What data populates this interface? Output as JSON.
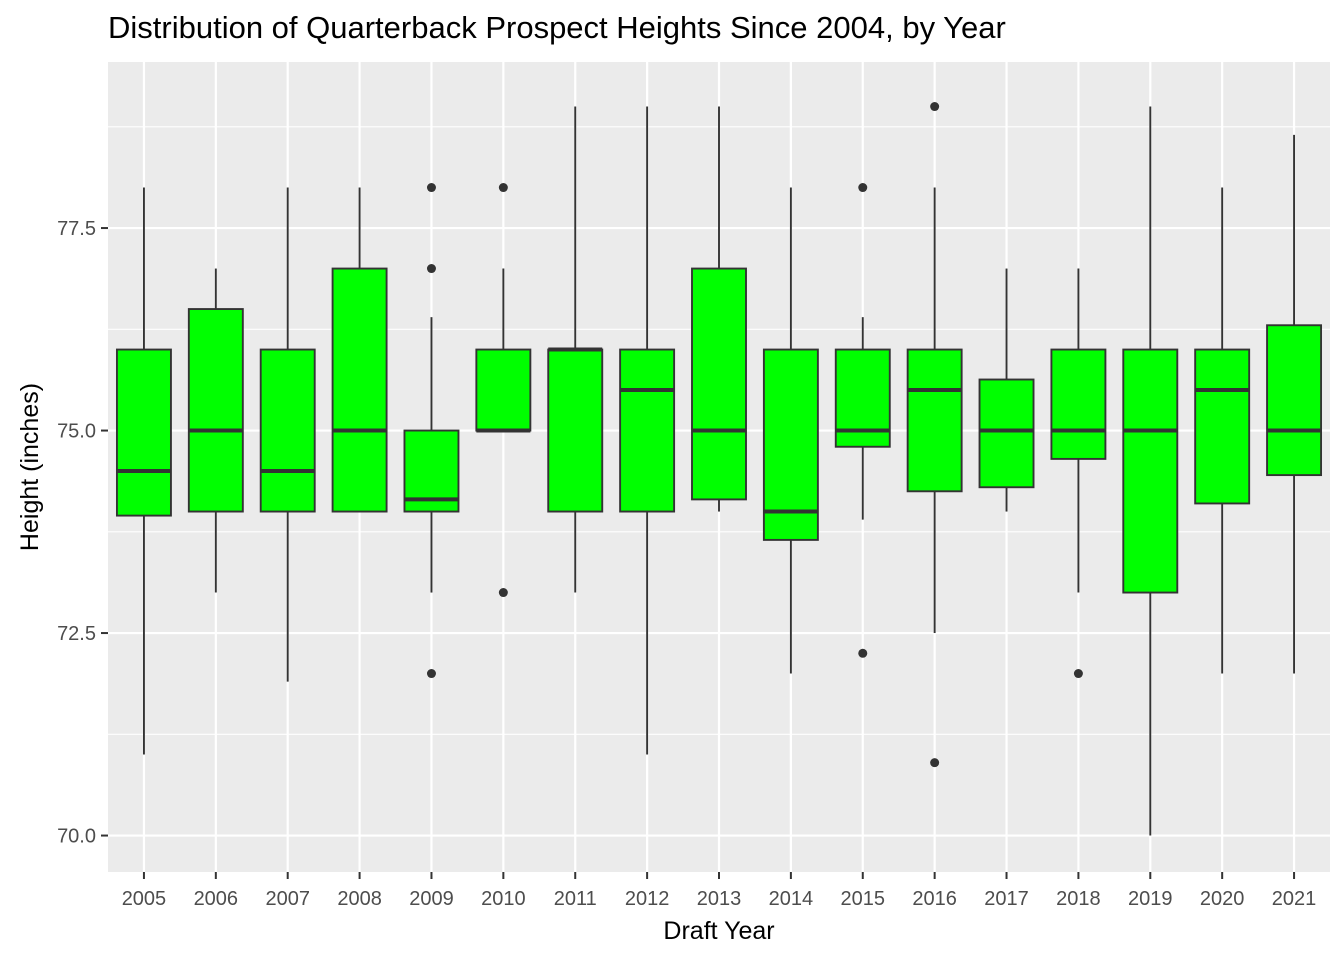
{
  "chart_data": {
    "type": "box",
    "title": "Distribution of Quarterback Prospect Heights Since 2004, by Year",
    "xlabel": "Draft Year",
    "ylabel": "Height (inches)",
    "ylim": [
      69.55,
      79.55
    ],
    "y_ticks": [
      70.0,
      72.5,
      75.0,
      77.5
    ],
    "y_tick_labels": [
      "70.0",
      "72.5",
      "75.0",
      "77.5"
    ],
    "grid": true,
    "colors": {
      "box_fill": "#00ff00",
      "outline": "#333333",
      "panel": "#ebebeb",
      "grid": "#ffffff"
    },
    "categories": [
      "2005",
      "2006",
      "2007",
      "2008",
      "2009",
      "2010",
      "2011",
      "2012",
      "2013",
      "2014",
      "2015",
      "2016",
      "2017",
      "2018",
      "2019",
      "2020",
      "2021"
    ],
    "boxes": [
      {
        "year": "2005",
        "lower_whisker": 71.0,
        "q1": 73.95,
        "median": 74.5,
        "q3": 76.0,
        "upper_whisker": 78.0,
        "outliers": []
      },
      {
        "year": "2006",
        "lower_whisker": 73.0,
        "q1": 74.0,
        "median": 75.0,
        "q3": 76.5,
        "upper_whisker": 77.0,
        "outliers": []
      },
      {
        "year": "2007",
        "lower_whisker": 71.9,
        "q1": 74.0,
        "median": 74.5,
        "q3": 76.0,
        "upper_whisker": 78.0,
        "outliers": []
      },
      {
        "year": "2008",
        "lower_whisker": 74.0,
        "q1": 74.0,
        "median": 75.0,
        "q3": 77.0,
        "upper_whisker": 78.0,
        "outliers": []
      },
      {
        "year": "2009",
        "lower_whisker": 73.0,
        "q1": 74.0,
        "median": 74.15,
        "q3": 75.0,
        "upper_whisker": 76.4,
        "outliers": [
          72.0,
          77.0,
          78.0
        ]
      },
      {
        "year": "2010",
        "lower_whisker": 75.0,
        "q1": 75.0,
        "median": 75.0,
        "q3": 76.0,
        "upper_whisker": 77.0,
        "outliers": [
          73.0,
          78.0
        ]
      },
      {
        "year": "2011",
        "lower_whisker": 73.0,
        "q1": 74.0,
        "median": 76.0,
        "q3": 76.0,
        "upper_whisker": 79.0,
        "outliers": []
      },
      {
        "year": "2012",
        "lower_whisker": 71.0,
        "q1": 74.0,
        "median": 75.5,
        "q3": 76.0,
        "upper_whisker": 79.0,
        "outliers": []
      },
      {
        "year": "2013",
        "lower_whisker": 74.0,
        "q1": 74.15,
        "median": 75.0,
        "q3": 77.0,
        "upper_whisker": 79.0,
        "outliers": []
      },
      {
        "year": "2014",
        "lower_whisker": 72.0,
        "q1": 73.65,
        "median": 74.0,
        "q3": 76.0,
        "upper_whisker": 78.0,
        "outliers": []
      },
      {
        "year": "2015",
        "lower_whisker": 73.9,
        "q1": 74.8,
        "median": 75.0,
        "q3": 76.0,
        "upper_whisker": 76.4,
        "outliers": [
          72.25,
          78.0
        ]
      },
      {
        "year": "2016",
        "lower_whisker": 72.5,
        "q1": 74.25,
        "median": 75.5,
        "q3": 76.0,
        "upper_whisker": 78.0,
        "outliers": [
          70.9,
          79.0
        ]
      },
      {
        "year": "2017",
        "lower_whisker": 74.0,
        "q1": 74.3,
        "median": 75.0,
        "q3": 75.63,
        "upper_whisker": 77.0,
        "outliers": []
      },
      {
        "year": "2018",
        "lower_whisker": 73.0,
        "q1": 74.65,
        "median": 75.0,
        "q3": 76.0,
        "upper_whisker": 77.0,
        "outliers": [
          72.0
        ]
      },
      {
        "year": "2019",
        "lower_whisker": 70.0,
        "q1": 73.0,
        "median": 75.0,
        "q3": 76.0,
        "upper_whisker": 79.0,
        "outliers": []
      },
      {
        "year": "2020",
        "lower_whisker": 72.0,
        "q1": 74.1,
        "median": 75.5,
        "q3": 76.0,
        "upper_whisker": 78.0,
        "outliers": []
      },
      {
        "year": "2021",
        "lower_whisker": 72.0,
        "q1": 74.45,
        "median": 75.0,
        "q3": 76.3,
        "upper_whisker": 78.65,
        "outliers": []
      }
    ]
  }
}
